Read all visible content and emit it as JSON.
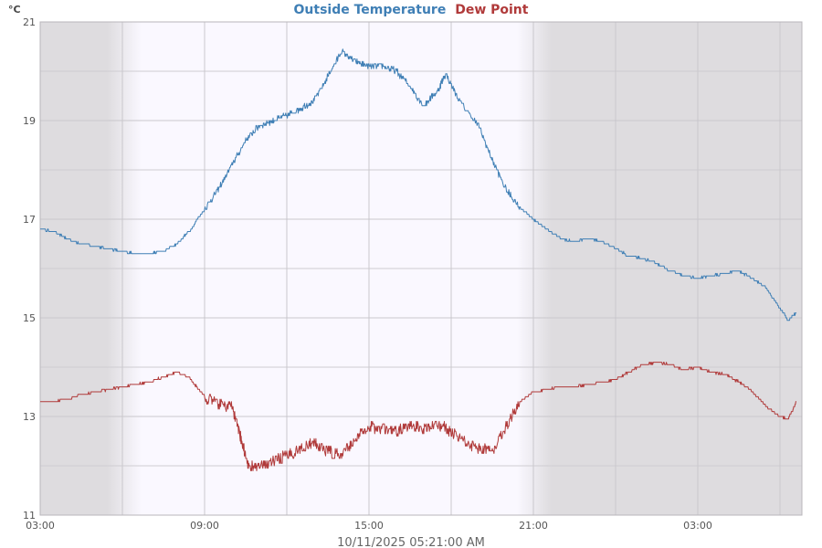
{
  "chart_data": {
    "type": "line",
    "title_parts": [
      {
        "text": "Outside Temperature",
        "color": "#3f7fb5"
      },
      {
        "text": "Dew Point",
        "color": "#b03a3a"
      }
    ],
    "ylabel": "°C",
    "footer": "10/11/2025 05:21:00 AM",
    "ylim": [
      11,
      21
    ],
    "yticks": [
      11,
      13,
      15,
      17,
      19,
      21
    ],
    "xlim_hours": [
      3,
      30.8
    ],
    "xticks": [
      {
        "h": 3,
        "label": "03:00"
      },
      {
        "h": 9,
        "label": "09:00"
      },
      {
        "h": 15,
        "label": "15:00"
      },
      {
        "h": 21,
        "label": "21:00"
      },
      {
        "h": 27,
        "label": "03:00"
      }
    ],
    "daylight": {
      "sunrise_h": 6.7,
      "sunset_h": 20.4
    },
    "colors": {
      "plot_bg": "#dedcdf",
      "day_bg": "#faf8ff",
      "grid": "#ffffff",
      "temp": "#3f7fb5",
      "dew": "#b03a3a"
    },
    "series": [
      {
        "name": "Outside Temperature",
        "color": "#3f7fb5",
        "points": [
          [
            3.0,
            16.8
          ],
          [
            3.5,
            16.75
          ],
          [
            4.0,
            16.6
          ],
          [
            4.5,
            16.5
          ],
          [
            5.0,
            16.45
          ],
          [
            5.5,
            16.4
          ],
          [
            6.0,
            16.35
          ],
          [
            6.5,
            16.3
          ],
          [
            7.0,
            16.3
          ],
          [
            7.5,
            16.35
          ],
          [
            8.0,
            16.5
          ],
          [
            8.5,
            16.8
          ],
          [
            9.0,
            17.2
          ],
          [
            9.5,
            17.6
          ],
          [
            10.0,
            18.1
          ],
          [
            10.5,
            18.6
          ],
          [
            11.0,
            18.9
          ],
          [
            11.5,
            19.0
          ],
          [
            12.0,
            19.1
          ],
          [
            12.5,
            19.25
          ],
          [
            13.0,
            19.4
          ],
          [
            13.5,
            19.9
          ],
          [
            14.0,
            20.4
          ],
          [
            14.5,
            20.2
          ],
          [
            15.0,
            20.1
          ],
          [
            15.5,
            20.1
          ],
          [
            16.0,
            20.0
          ],
          [
            16.5,
            19.7
          ],
          [
            17.0,
            19.3
          ],
          [
            17.5,
            19.6
          ],
          [
            17.8,
            19.95
          ],
          [
            18.3,
            19.4
          ],
          [
            19.0,
            18.9
          ],
          [
            19.5,
            18.2
          ],
          [
            20.0,
            17.6
          ],
          [
            20.5,
            17.25
          ],
          [
            21.0,
            17.0
          ],
          [
            21.5,
            16.8
          ],
          [
            22.0,
            16.6
          ],
          [
            22.5,
            16.55
          ],
          [
            23.0,
            16.6
          ],
          [
            23.5,
            16.55
          ],
          [
            24.0,
            16.4
          ],
          [
            24.5,
            16.25
          ],
          [
            25.0,
            16.2
          ],
          [
            25.5,
            16.1
          ],
          [
            26.0,
            15.95
          ],
          [
            26.5,
            15.85
          ],
          [
            27.0,
            15.8
          ],
          [
            27.5,
            15.85
          ],
          [
            28.0,
            15.9
          ],
          [
            28.5,
            15.95
          ],
          [
            29.0,
            15.8
          ],
          [
            29.5,
            15.6
          ],
          [
            30.0,
            15.2
          ],
          [
            30.3,
            14.95
          ],
          [
            30.6,
            15.1
          ]
        ]
      },
      {
        "name": "Dew Point",
        "color": "#b03a3a",
        "points": [
          [
            3.0,
            13.3
          ],
          [
            3.5,
            13.3
          ],
          [
            4.0,
            13.35
          ],
          [
            4.5,
            13.45
          ],
          [
            5.0,
            13.5
          ],
          [
            5.5,
            13.55
          ],
          [
            6.0,
            13.6
          ],
          [
            6.5,
            13.65
          ],
          [
            7.0,
            13.7
          ],
          [
            7.5,
            13.8
          ],
          [
            8.0,
            13.9
          ],
          [
            8.5,
            13.75
          ],
          [
            9.0,
            13.4
          ],
          [
            9.5,
            13.25
          ],
          [
            10.0,
            13.2
          ],
          [
            10.3,
            12.6
          ],
          [
            10.6,
            12.0
          ],
          [
            11.0,
            11.95
          ],
          [
            11.5,
            12.1
          ],
          [
            12.0,
            12.2
          ],
          [
            12.5,
            12.35
          ],
          [
            13.0,
            12.45
          ],
          [
            13.5,
            12.3
          ],
          [
            14.0,
            12.2
          ],
          [
            14.5,
            12.55
          ],
          [
            15.0,
            12.8
          ],
          [
            15.5,
            12.75
          ],
          [
            16.0,
            12.7
          ],
          [
            16.5,
            12.8
          ],
          [
            17.0,
            12.75
          ],
          [
            17.5,
            12.85
          ],
          [
            18.0,
            12.7
          ],
          [
            18.5,
            12.5
          ],
          [
            19.0,
            12.35
          ],
          [
            19.5,
            12.3
          ],
          [
            20.0,
            12.8
          ],
          [
            20.5,
            13.3
          ],
          [
            21.0,
            13.5
          ],
          [
            21.5,
            13.55
          ],
          [
            22.0,
            13.6
          ],
          [
            22.5,
            13.6
          ],
          [
            23.0,
            13.65
          ],
          [
            23.5,
            13.7
          ],
          [
            24.0,
            13.75
          ],
          [
            24.5,
            13.9
          ],
          [
            25.0,
            14.05
          ],
          [
            25.5,
            14.1
          ],
          [
            26.0,
            14.05
          ],
          [
            26.5,
            13.95
          ],
          [
            27.0,
            14.0
          ],
          [
            27.5,
            13.9
          ],
          [
            28.0,
            13.85
          ],
          [
            28.5,
            13.7
          ],
          [
            29.0,
            13.5
          ],
          [
            29.5,
            13.2
          ],
          [
            30.0,
            13.0
          ],
          [
            30.3,
            12.95
          ],
          [
            30.6,
            13.3
          ]
        ]
      }
    ]
  }
}
